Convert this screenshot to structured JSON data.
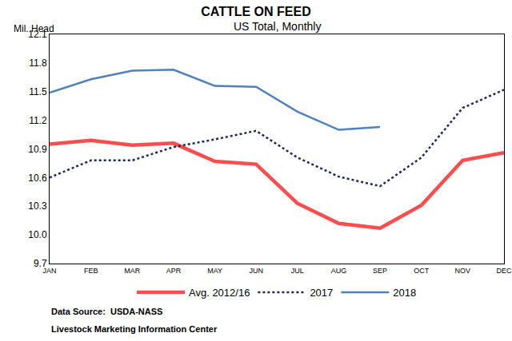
{
  "chart_data": {
    "type": "line",
    "title": "CATTLE ON FEED",
    "subtitle": "US Total, Monthly",
    "ylabel": "Mil. Head",
    "annotations": [
      "Data Source:  USDA-NASS",
      "Livestock Marketing Information Center"
    ],
    "categories": [
      "JAN",
      "FEB",
      "MAR",
      "APR",
      "MAY",
      "JUN",
      "JUL",
      "AUG",
      "SEP",
      "OCT",
      "NOV",
      "DEC"
    ],
    "series": [
      {
        "name": "Avg. 2012/16",
        "color": "#ff4d4d",
        "line_style": "solid",
        "values": [
          10.95,
          10.99,
          10.94,
          10.96,
          10.77,
          10.74,
          10.33,
          10.12,
          10.07,
          10.31,
          10.78,
          10.86
        ]
      },
      {
        "name": "2017",
        "color": "#1f2a5c",
        "line_style": "dotted",
        "values": [
          10.6,
          10.78,
          10.78,
          10.92,
          11.0,
          11.09,
          10.81,
          10.61,
          10.51,
          10.81,
          11.33,
          11.52
        ]
      },
      {
        "name": "2018",
        "color": "#4f81bd",
        "line_style": "solid",
        "values": [
          11.49,
          11.63,
          11.72,
          11.73,
          11.56,
          11.55,
          11.29,
          11.1,
          11.13,
          null,
          null,
          null
        ]
      }
    ],
    "ylim": [
      9.7,
      12.1
    ],
    "yticks": [
      9.7,
      {
        "value": 10,
        "label": "10.0"
      },
      10.3,
      10.6,
      10.9,
      11.2,
      11.5,
      11.8,
      12.1
    ],
    "grid": false,
    "legend": "bottom",
    "marker": "none"
  }
}
